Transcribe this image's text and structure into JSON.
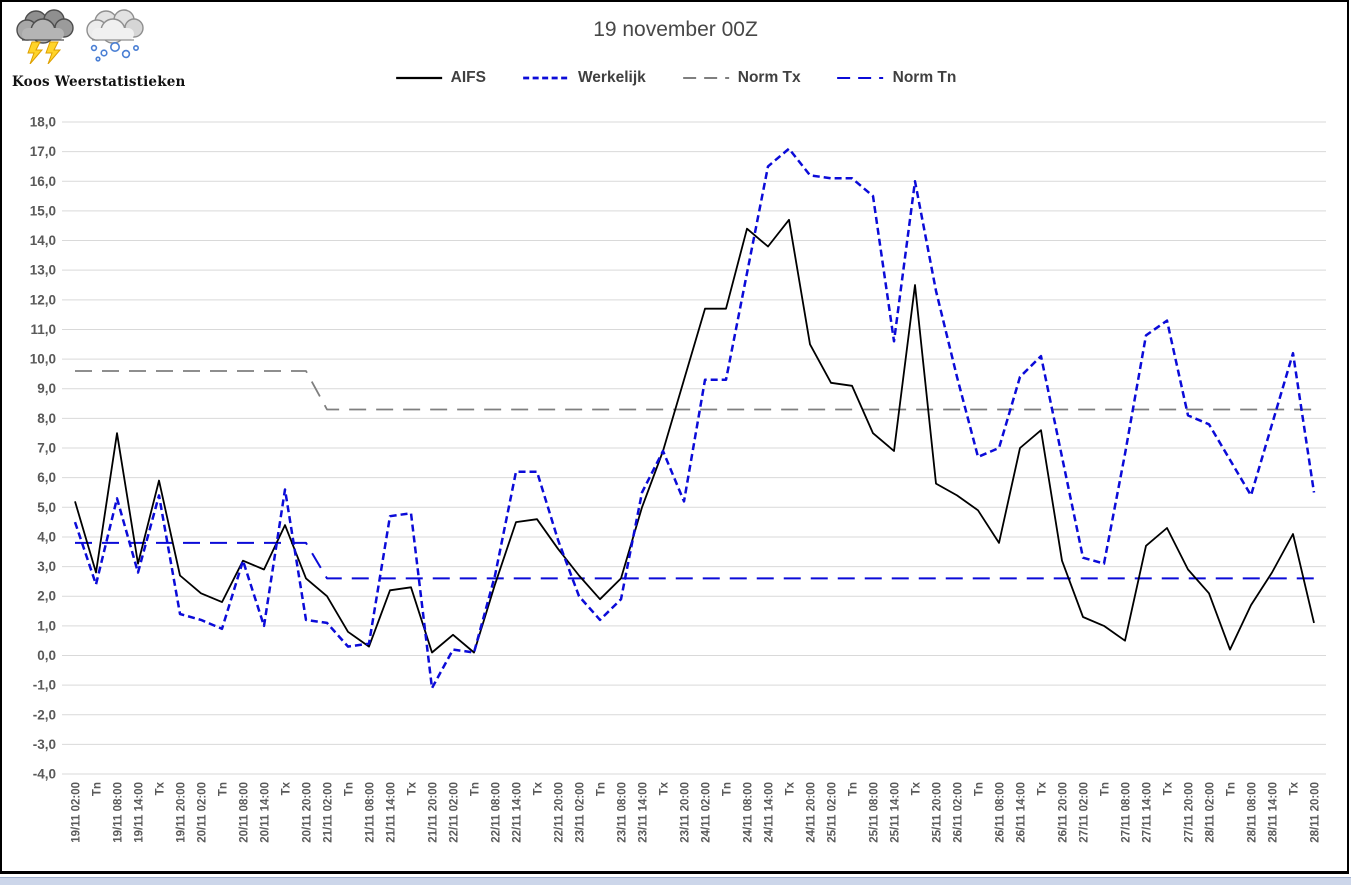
{
  "logo": {
    "text": "Koos Weerstatistieken",
    "icons": [
      "thunderstorm-cloud-icon",
      "snow-cloud-icon"
    ]
  },
  "chart_data": {
    "type": "line",
    "title": "19 november 00Z",
    "ylim": [
      -4,
      18
    ],
    "ytick_step": 1.0,
    "grid": true,
    "legend_position": "top",
    "colors": {
      "aifs": "#000000",
      "werkelijk": "#0b0bd8",
      "norm_tx": "#7f7f7f",
      "norm_tn": "#0b0bd8",
      "gridline": "#d9d9d9",
      "axis_text": "#595959",
      "title_text": "#474747"
    },
    "legend": [
      {
        "label": "AIFS",
        "color": "#000000",
        "line_style": "solid"
      },
      {
        "label": "Werkelijk",
        "color": "#0b0bd8",
        "line_style": "short-dash"
      },
      {
        "label": "Norm Tx",
        "color": "#7f7f7f",
        "line_style": "long-dash"
      },
      {
        "label": "Norm Tn",
        "color": "#0b0bd8",
        "line_style": "long-dash"
      }
    ],
    "y_tick_labels": [
      "18,0",
      "17,0",
      "16,0",
      "15,0",
      "14,0",
      "13,0",
      "12,0",
      "11,0",
      "10,0",
      "9,0",
      "8,0",
      "7,0",
      "6,0",
      "5,0",
      "4,0",
      "3,0",
      "2,0",
      "1,0",
      "0,0",
      "-1,0",
      "-2,0",
      "-3,0",
      "-4,0"
    ],
    "categories": [
      "19/11 02:00",
      "Tn",
      "19/11 08:00",
      "19/11 14:00",
      "Tx",
      "19/11 20:00",
      "20/11 02:00",
      "Tn",
      "20/11 08:00",
      "20/11 14:00",
      "Tx",
      "20/11 20:00",
      "21/11 02:00",
      "Tn",
      "21/11 08:00",
      "21/11 14:00",
      "Tx",
      "21/11 20:00",
      "22/11 02:00",
      "Tn",
      "22/11 08:00",
      "22/11 14:00",
      "Tx",
      "22/11 20:00",
      "23/11 02:00",
      "Tn",
      "23/11 08:00",
      "23/11 14:00",
      "Tx",
      "23/11 20:00",
      "24/11 02:00",
      "Tn",
      "24/11 08:00",
      "24/11 14:00",
      "Tx",
      "24/11 20:00",
      "25/11 02:00",
      "Tn",
      "25/11 08:00",
      "25/11 14:00",
      "Tx",
      "25/11 20:00",
      "26/11 02:00",
      "Tn",
      "26/11 08:00",
      "26/11 14:00",
      "Tx",
      "26/11 20:00",
      "27/11 02:00",
      "Tn",
      "27/11 08:00",
      "27/11 14:00",
      "Tx",
      "27/11 20:00",
      "28/11 02:00",
      "Tn",
      "28/11 08:00",
      "28/11 14:00",
      "Tx",
      "28/11 20:00"
    ],
    "series": [
      {
        "name": "AIFS",
        "values": [
          5.2,
          2.8,
          7.5,
          3.1,
          5.9,
          2.7,
          2.1,
          1.8,
          3.2,
          2.9,
          4.4,
          2.6,
          2.0,
          0.8,
          0.3,
          2.2,
          2.3,
          0.1,
          0.7,
          0.1,
          2.4,
          4.5,
          4.6,
          3.6,
          2.7,
          1.9,
          2.6,
          5.0,
          6.9,
          9.3,
          11.7,
          11.7,
          14.4,
          13.8,
          14.7,
          10.5,
          9.2,
          9.1,
          7.5,
          6.9,
          12.5,
          5.8,
          5.4,
          4.9,
          3.8,
          7.0,
          7.6,
          3.2,
          1.3,
          1.0,
          0.5,
          3.7,
          4.3,
          2.9,
          2.1,
          0.2,
          1.7,
          2.8,
          4.1,
          1.1
        ]
      },
      {
        "name": "Werkelijk",
        "values": [
          4.5,
          2.4,
          5.3,
          2.8,
          5.4,
          1.4,
          1.2,
          0.9,
          3.2,
          1.0,
          5.6,
          1.2,
          1.1,
          0.3,
          0.4,
          4.7,
          4.8,
          -1.1,
          0.2,
          0.1,
          2.7,
          6.2,
          6.2,
          3.9,
          2.0,
          1.2,
          1.9,
          5.5,
          6.9,
          5.2,
          9.3,
          9.3,
          12.9,
          16.5,
          17.1,
          16.2,
          16.1,
          16.1,
          15.5,
          10.6,
          16.0,
          12.3,
          9.4,
          6.7,
          7.0,
          9.4,
          10.1,
          6.7,
          3.3,
          3.1,
          6.8,
          10.8,
          11.3,
          8.1,
          7.8,
          6.6,
          5.4,
          7.8,
          10.2,
          5.5
        ]
      },
      {
        "name": "Norm Tx",
        "values": [
          9.6,
          9.6,
          9.6,
          9.6,
          9.6,
          9.6,
          9.6,
          9.6,
          9.6,
          9.6,
          9.6,
          9.6,
          8.3,
          8.3,
          8.3,
          8.3,
          8.3,
          8.3,
          8.3,
          8.3,
          8.3,
          8.3,
          8.3,
          8.3,
          8.3,
          8.3,
          8.3,
          8.3,
          8.3,
          8.3,
          8.3,
          8.3,
          8.3,
          8.3,
          8.3,
          8.3,
          8.3,
          8.3,
          8.3,
          8.3,
          8.3,
          8.3,
          8.3,
          8.3,
          8.3,
          8.3,
          8.3,
          8.3,
          8.3,
          8.3,
          8.3,
          8.3,
          8.3,
          8.3,
          8.3,
          8.3,
          8.3,
          8.3,
          8.3,
          8.3
        ]
      },
      {
        "name": "Norm Tn",
        "values": [
          3.8,
          3.8,
          3.8,
          3.8,
          3.8,
          3.8,
          3.8,
          3.8,
          3.8,
          3.8,
          3.8,
          3.8,
          2.6,
          2.6,
          2.6,
          2.6,
          2.6,
          2.6,
          2.6,
          2.6,
          2.6,
          2.6,
          2.6,
          2.6,
          2.6,
          2.6,
          2.6,
          2.6,
          2.6,
          2.6,
          2.6,
          2.6,
          2.6,
          2.6,
          2.6,
          2.6,
          2.6,
          2.6,
          2.6,
          2.6,
          2.6,
          2.6,
          2.6,
          2.6,
          2.6,
          2.6,
          2.6,
          2.6,
          2.6,
          2.6,
          2.6,
          2.6,
          2.6,
          2.6,
          2.6,
          2.6,
          2.6,
          2.6,
          2.6,
          2.6
        ]
      }
    ]
  }
}
